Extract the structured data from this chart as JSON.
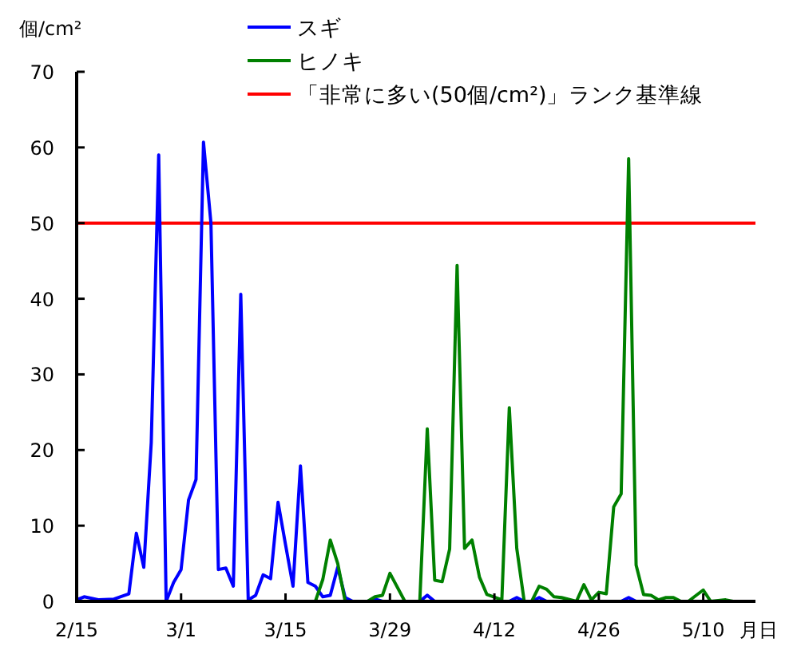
{
  "chart_data": {
    "type": "line",
    "ylabel": "個/cm²",
    "xlabel": "月日",
    "legend": "top",
    "grid": false,
    "xlim": [
      "--02-15",
      "--05-17"
    ],
    "ylim": [
      0,
      70
    ],
    "yticks": [
      0,
      10,
      20,
      30,
      40,
      50,
      60,
      70
    ],
    "xticks": [
      {
        "value": "--02-15",
        "label": "2/15"
      },
      {
        "value": "--03-01",
        "label": "3/1"
      },
      {
        "value": "--03-15",
        "label": "3/15"
      },
      {
        "value": "--03-29",
        "label": "3/29"
      },
      {
        "value": "--04-12",
        "label": "4/12"
      },
      {
        "value": "--04-26",
        "label": "4/26"
      },
      {
        "value": "--05-10",
        "label": "5/10"
      }
    ],
    "series": [
      {
        "name": "スギ",
        "color": "#0000ff",
        "x": [
          "--02-15",
          "--02-16",
          "--02-18",
          "--02-20",
          "--02-22",
          "--02-23",
          "--02-24",
          "--02-25",
          "--02-26",
          "--02-27",
          "--02-28",
          "--03-01",
          "--03-02",
          "--03-03",
          "--03-04",
          "--03-05",
          "--03-06",
          "--03-07",
          "--03-08",
          "--03-09",
          "--03-10",
          "--03-11",
          "--03-12",
          "--03-13",
          "--03-14",
          "--03-15",
          "--03-16",
          "--03-17",
          "--03-18",
          "--03-19",
          "--03-20",
          "--03-21",
          "--03-22",
          "--03-23",
          "--03-24",
          "--03-26",
          "--03-27",
          "--03-28",
          "--04-02",
          "--04-03",
          "--04-04",
          "--04-14",
          "--04-15",
          "--04-16",
          "--04-17",
          "--04-18",
          "--04-19",
          "--04-29",
          "--04-30",
          "--05-01",
          "--05-17"
        ],
        "values": [
          0.2,
          0.6,
          0.2,
          0.3,
          1,
          9,
          4.5,
          21,
          59,
          0,
          2.5,
          4.2,
          13.4,
          16.1,
          60.7,
          50,
          4.2,
          4.4,
          2,
          40.6,
          0.2,
          0.8,
          3.5,
          3,
          13.1,
          7.5,
          2,
          17.9,
          2.5,
          2,
          0.6,
          0.8,
          4.5,
          0.5,
          0,
          0,
          0.3,
          0,
          0,
          0.8,
          0,
          0,
          0.5,
          0,
          0,
          0.5,
          0,
          0,
          0.5,
          0,
          0
        ]
      },
      {
        "name": "ヒノキ",
        "color": "#008000",
        "x": [
          "--02-15",
          "--03-19",
          "--03-20",
          "--03-21",
          "--03-22",
          "--03-23",
          "--03-26",
          "--03-27",
          "--03-28",
          "--03-29",
          "--03-31",
          "--04-02",
          "--04-03",
          "--04-04",
          "--04-05",
          "--04-06",
          "--04-07",
          "--04-08",
          "--04-09",
          "--04-10",
          "--04-11",
          "--04-13",
          "--04-14",
          "--04-15",
          "--04-16",
          "--04-17",
          "--04-18",
          "--04-19",
          "--04-20",
          "--04-21",
          "--04-23",
          "--04-24",
          "--04-25",
          "--04-26",
          "--04-27",
          "--04-28",
          "--04-29",
          "--04-30",
          "--05-01",
          "--05-02",
          "--05-03",
          "--05-04",
          "--05-05",
          "--05-06",
          "--05-07",
          "--05-08",
          "--05-10",
          "--05-11",
          "--05-13",
          "--05-14",
          "--05-17"
        ],
        "values": [
          0,
          0,
          2.9,
          8.1,
          5,
          0,
          0,
          0.6,
          0.8,
          3.7,
          0,
          0,
          22.8,
          2.8,
          2.6,
          6.9,
          44.4,
          7,
          8.1,
          3.2,
          0.9,
          0.2,
          25.6,
          7,
          0,
          0,
          2,
          1.6,
          0.6,
          0.5,
          0,
          2.2,
          0.2,
          1.2,
          1,
          12.5,
          14.2,
          58.5,
          4.8,
          0.9,
          0.8,
          0.2,
          0.5,
          0.5,
          0,
          0,
          1.5,
          0,
          0.2,
          0,
          0
        ]
      }
    ],
    "ref_lines": [
      {
        "axis": "y",
        "value": 50,
        "label": "「非常に多い(50個/cm²)」ランク基準線",
        "color": "#ff0000"
      }
    ]
  }
}
